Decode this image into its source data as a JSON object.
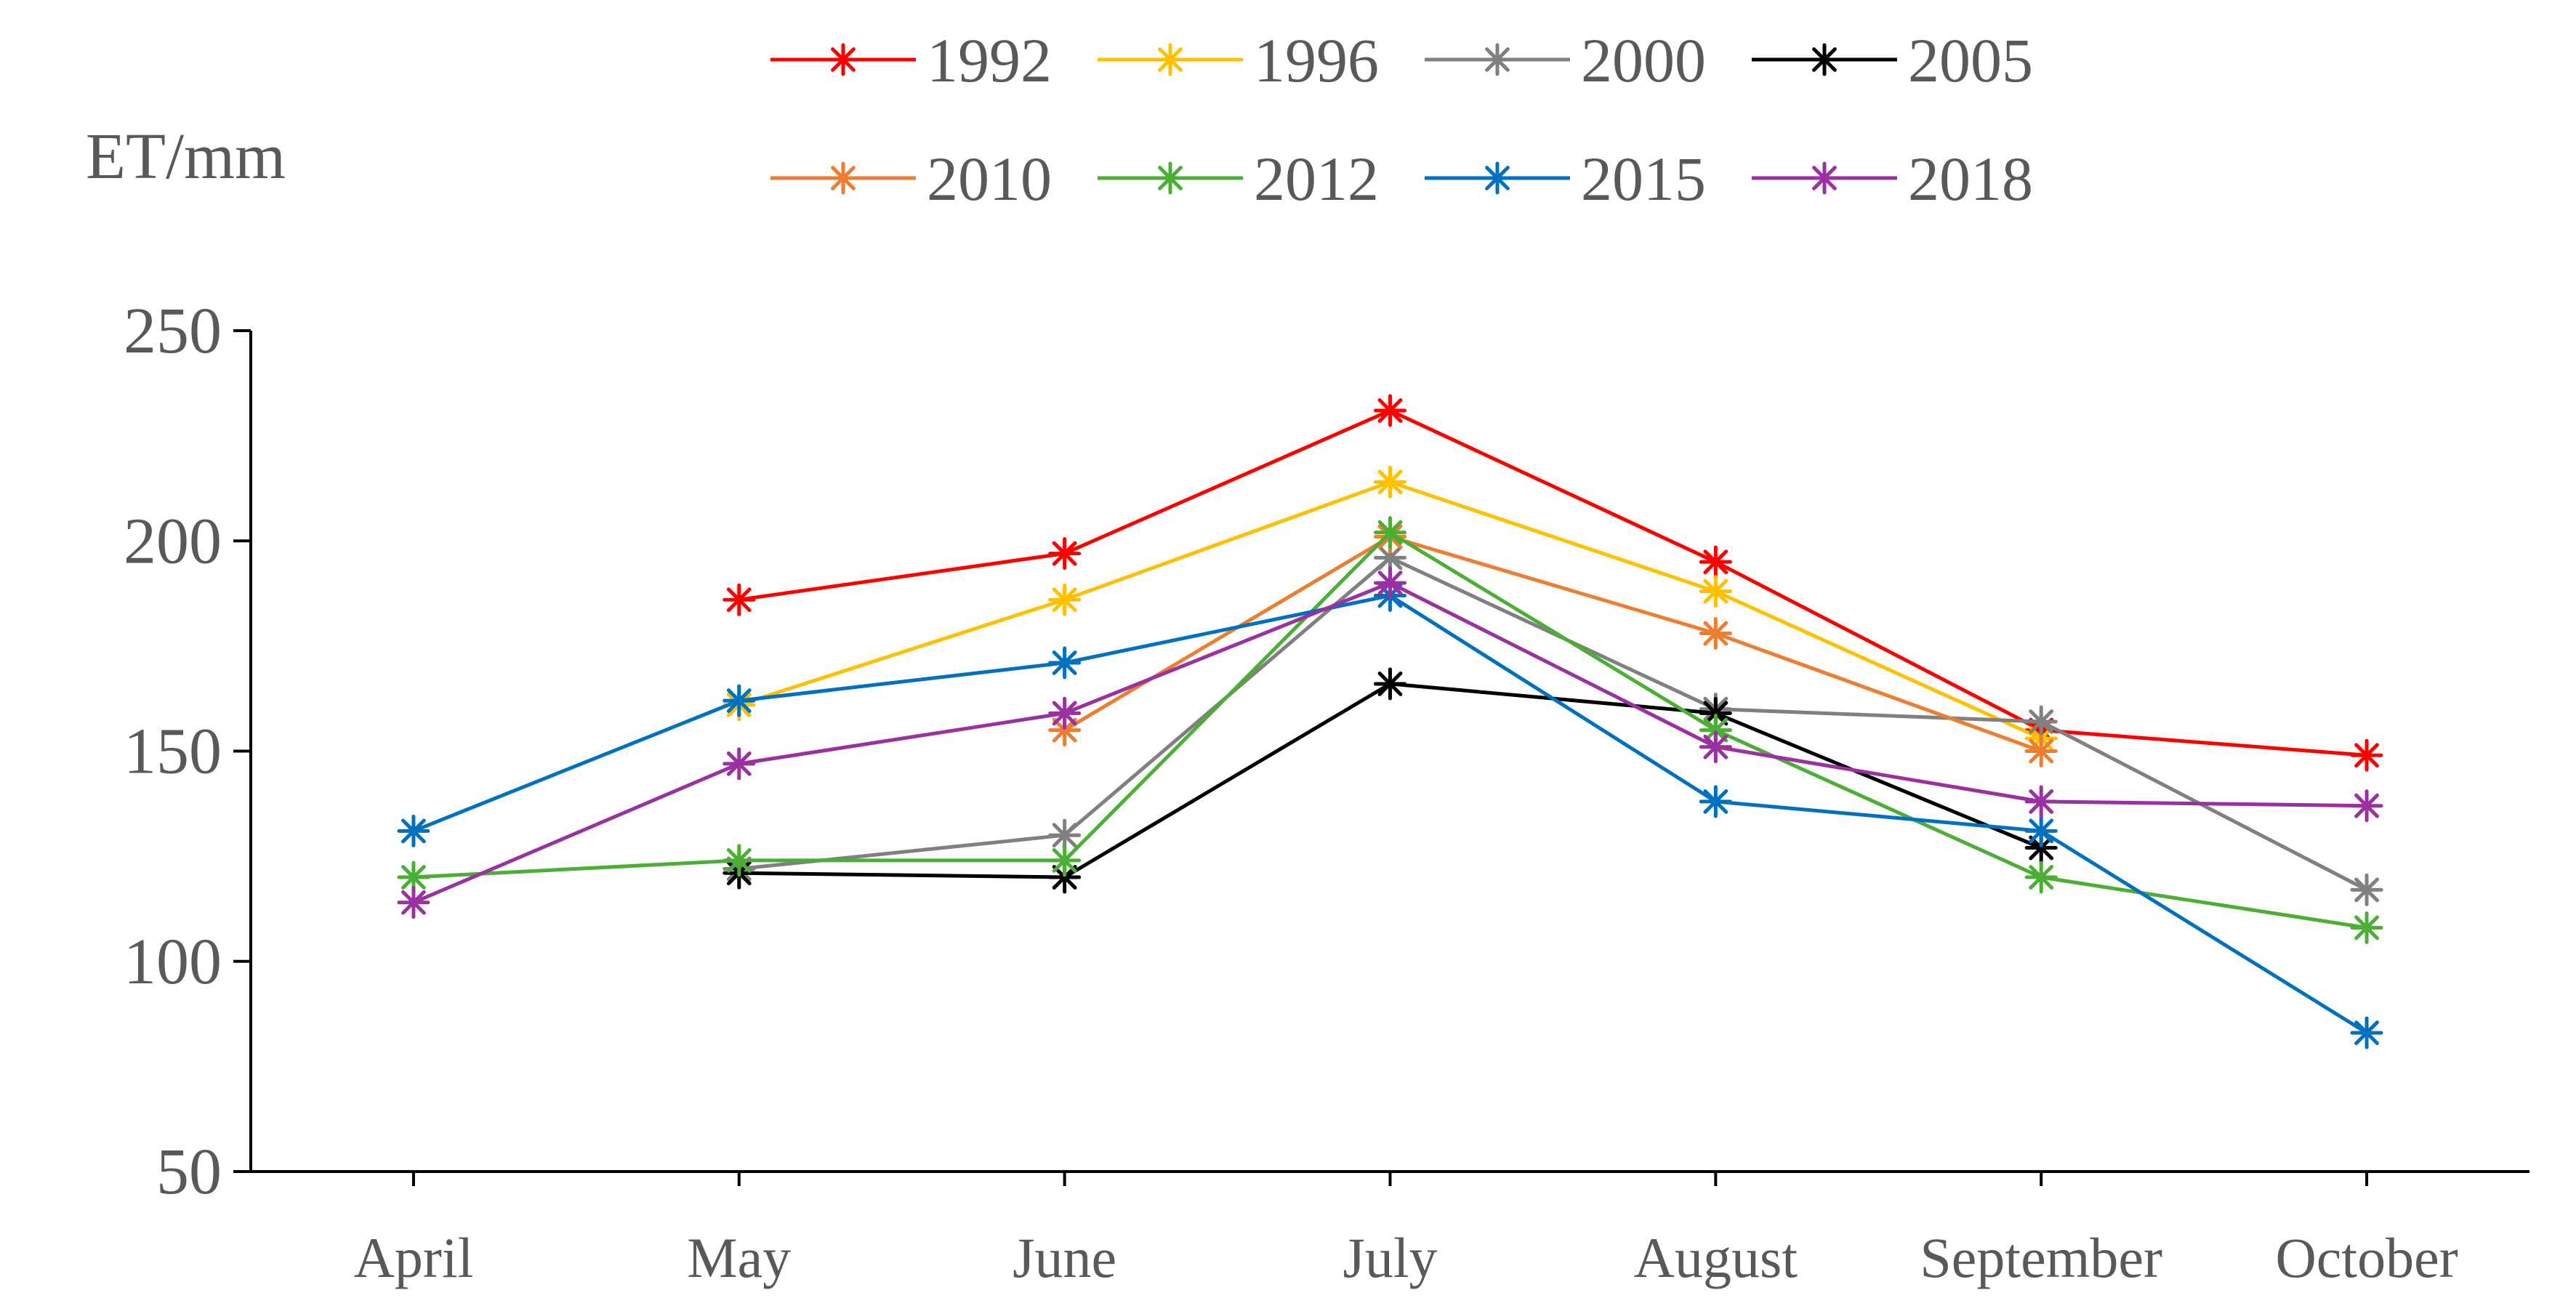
{
  "chart_data": {
    "type": "line",
    "title": "",
    "ylabel": "ET/mm",
    "xlabel": "",
    "ylim": [
      50,
      250
    ],
    "yticks": [
      50,
      100,
      150,
      200,
      250
    ],
    "categories": [
      "April",
      "May",
      "June",
      "July",
      "August",
      "September",
      "October"
    ],
    "legend_position": "top",
    "series": [
      {
        "name": "1992",
        "color": "#ff0000",
        "values": [
          null,
          186,
          197,
          231,
          195,
          155,
          149
        ]
      },
      {
        "name": "1996",
        "color": "#ffc000",
        "values": [
          null,
          161,
          186,
          214,
          188,
          153,
          null
        ]
      },
      {
        "name": "2000",
        "color": "#808080",
        "values": [
          null,
          122,
          130,
          196,
          160,
          157,
          117
        ]
      },
      {
        "name": "2005",
        "color": "#000000",
        "values": [
          null,
          121,
          120,
          166,
          159,
          127,
          null
        ]
      },
      {
        "name": "2010",
        "color": "#ed7d31",
        "values": [
          null,
          null,
          155,
          201,
          178,
          150,
          null
        ]
      },
      {
        "name": "2012",
        "color": "#4caf35",
        "values": [
          120,
          124,
          124,
          202,
          155,
          120,
          108
        ]
      },
      {
        "name": "2015",
        "color": "#0070c0",
        "values": [
          131,
          162,
          171,
          187,
          138,
          131,
          83
        ]
      },
      {
        "name": "2018",
        "color": "#9b30a0",
        "values": [
          114,
          147,
          159,
          190,
          151,
          138,
          137
        ]
      }
    ]
  }
}
